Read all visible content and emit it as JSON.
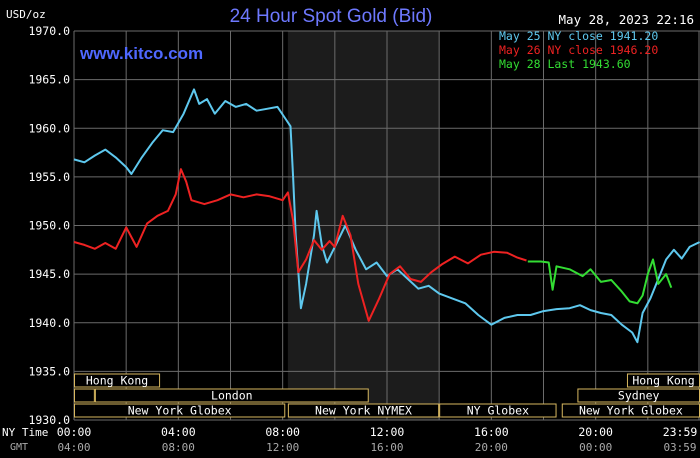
{
  "header": {
    "units": "USD/oz",
    "title": "24 Hour Spot Gold (Bid)",
    "timestamp": "May 28, 2023 22:16",
    "watermark": "www.kitco.com"
  },
  "legend": [
    {
      "label": "May 25 NY close 1941.20",
      "color": "#5ec8ee"
    },
    {
      "label": "May 26 NY close 1946.20",
      "color": "#ee2222"
    },
    {
      "label": "May 28 Last 1943.60",
      "color": "#33dd33"
    }
  ],
  "axis": {
    "ny_time_label": "NY Time",
    "gmt_label": "GMT",
    "x_ticks_ny": [
      "00:00",
      "04:00",
      "08:00",
      "12:00",
      "16:00",
      "20:00",
      "23:59"
    ],
    "x_ticks_gmt": [
      "04:00",
      "08:00",
      "12:00",
      "16:00",
      "20:00",
      "00:00",
      "03:59"
    ],
    "y_ticks": [
      "1970.0",
      "1965.0",
      "1960.0",
      "1955.0",
      "1950.0",
      "1945.0",
      "1940.0",
      "1935.0",
      "1930.0"
    ]
  },
  "sessions": {
    "row1": [
      {
        "label": "Hong Kong",
        "start": 0,
        "end": 3.3
      },
      {
        "label": "Hong Kong",
        "start": 21.2,
        "end": 24
      }
    ],
    "row2": [
      {
        "label": "",
        "start": 0,
        "end": 0.8
      },
      {
        "label": "London",
        "start": 0.8,
        "end": 11.3
      },
      {
        "label": "Sydney",
        "start": 19.3,
        "end": 24
      }
    ],
    "row3": [
      {
        "label": "New York Globex",
        "start": 0,
        "end": 8.1
      },
      {
        "label": "New York NYMEX",
        "start": 8.2,
        "end": 14.0
      },
      {
        "label": "NY Globex",
        "start": 14.0,
        "end": 18.5
      },
      {
        "label": "New York Globex",
        "start": 18.7,
        "end": 24
      }
    ]
  },
  "chart_data": {
    "type": "line",
    "title": "24 Hour Spot Gold (Bid)",
    "ylabel": "USD/oz",
    "xlabel": "NY Time",
    "ylim": [
      1930,
      1970
    ],
    "xlim": [
      0,
      24
    ],
    "grid": true,
    "shaded_region_hours": [
      8.2,
      14.0
    ],
    "legend_position": "top-right",
    "series": [
      {
        "name": "May 25 NY close 1941.20",
        "color": "#5ec8ee",
        "points": [
          [
            0,
            1956.8
          ],
          [
            0.4,
            1956.5
          ],
          [
            0.8,
            1957.2
          ],
          [
            1.2,
            1957.8
          ],
          [
            1.6,
            1957.0
          ],
          [
            2.0,
            1956.0
          ],
          [
            2.2,
            1955.3
          ],
          [
            2.6,
            1957.0
          ],
          [
            3.0,
            1958.5
          ],
          [
            3.4,
            1959.8
          ],
          [
            3.8,
            1959.6
          ],
          [
            4.2,
            1961.5
          ],
          [
            4.6,
            1964.0
          ],
          [
            4.8,
            1962.5
          ],
          [
            5.1,
            1963.0
          ],
          [
            5.4,
            1961.5
          ],
          [
            5.8,
            1962.8
          ],
          [
            6.2,
            1962.2
          ],
          [
            6.6,
            1962.5
          ],
          [
            7.0,
            1961.8
          ],
          [
            7.4,
            1962.0
          ],
          [
            7.8,
            1962.2
          ],
          [
            8.1,
            1961.0
          ],
          [
            8.3,
            1960.2
          ],
          [
            8.4,
            1955.0
          ],
          [
            8.5,
            1949.0
          ],
          [
            8.7,
            1941.5
          ],
          [
            8.9,
            1944.0
          ],
          [
            9.2,
            1949.0
          ],
          [
            9.3,
            1951.5
          ],
          [
            9.5,
            1948.0
          ],
          [
            9.7,
            1946.2
          ],
          [
            10.0,
            1947.8
          ],
          [
            10.4,
            1950.0
          ],
          [
            10.8,
            1947.5
          ],
          [
            11.2,
            1945.5
          ],
          [
            11.6,
            1946.2
          ],
          [
            12.0,
            1944.8
          ],
          [
            12.4,
            1945.5
          ],
          [
            12.8,
            1944.5
          ],
          [
            13.2,
            1943.5
          ],
          [
            13.6,
            1943.8
          ],
          [
            14.0,
            1943.0
          ],
          [
            14.5,
            1942.5
          ],
          [
            15.0,
            1942.0
          ],
          [
            15.5,
            1940.8
          ],
          [
            16.0,
            1939.8
          ],
          [
            16.5,
            1940.5
          ],
          [
            17.0,
            1940.8
          ],
          [
            17.5,
            1940.8
          ],
          [
            18.0,
            1941.2
          ],
          [
            18.5,
            1941.4
          ],
          [
            19.0,
            1941.5
          ],
          [
            19.4,
            1941.8
          ],
          [
            19.8,
            1941.3
          ],
          [
            20.2,
            1941.0
          ],
          [
            20.6,
            1940.8
          ],
          [
            21.0,
            1939.8
          ],
          [
            21.4,
            1939.0
          ],
          [
            21.6,
            1938.0
          ],
          [
            21.8,
            1941.0
          ],
          [
            22.1,
            1942.5
          ],
          [
            22.4,
            1944.5
          ],
          [
            22.7,
            1946.5
          ],
          [
            23.0,
            1947.5
          ],
          [
            23.3,
            1946.6
          ],
          [
            23.6,
            1947.8
          ],
          [
            23.99,
            1948.3
          ]
        ]
      },
      {
        "name": "May 26 NY close 1946.20",
        "color": "#ee2222",
        "points": [
          [
            0,
            1948.3
          ],
          [
            0.4,
            1948.0
          ],
          [
            0.8,
            1947.6
          ],
          [
            1.2,
            1948.2
          ],
          [
            1.6,
            1947.6
          ],
          [
            2.0,
            1949.8
          ],
          [
            2.4,
            1947.8
          ],
          [
            2.8,
            1950.2
          ],
          [
            3.2,
            1951.0
          ],
          [
            3.6,
            1951.5
          ],
          [
            3.9,
            1953.2
          ],
          [
            4.1,
            1955.8
          ],
          [
            4.3,
            1954.5
          ],
          [
            4.5,
            1952.6
          ],
          [
            5.0,
            1952.2
          ],
          [
            5.5,
            1952.6
          ],
          [
            6.0,
            1953.2
          ],
          [
            6.5,
            1952.9
          ],
          [
            7.0,
            1953.2
          ],
          [
            7.5,
            1953.0
          ],
          [
            8.0,
            1952.6
          ],
          [
            8.2,
            1953.4
          ],
          [
            8.4,
            1950.5
          ],
          [
            8.6,
            1945.2
          ],
          [
            8.9,
            1946.5
          ],
          [
            9.2,
            1948.5
          ],
          [
            9.5,
            1947.5
          ],
          [
            9.8,
            1948.4
          ],
          [
            10.0,
            1947.8
          ],
          [
            10.3,
            1951.0
          ],
          [
            10.6,
            1949.0
          ],
          [
            10.9,
            1944.0
          ],
          [
            11.3,
            1940.2
          ],
          [
            11.7,
            1942.5
          ],
          [
            12.1,
            1945.0
          ],
          [
            12.5,
            1945.8
          ],
          [
            12.9,
            1944.5
          ],
          [
            13.3,
            1944.2
          ],
          [
            13.7,
            1945.2
          ],
          [
            14.1,
            1946.0
          ],
          [
            14.6,
            1946.8
          ],
          [
            15.1,
            1946.1
          ],
          [
            15.6,
            1947.0
          ],
          [
            16.1,
            1947.3
          ],
          [
            16.6,
            1947.2
          ],
          [
            17.0,
            1946.7
          ],
          [
            17.35,
            1946.4
          ]
        ]
      },
      {
        "name": "May 28 Last 1943.60",
        "color": "#33dd33",
        "points": [
          [
            17.4,
            1946.3
          ],
          [
            17.9,
            1946.3
          ],
          [
            18.2,
            1946.2
          ],
          [
            18.35,
            1943.4
          ],
          [
            18.5,
            1945.8
          ],
          [
            19.0,
            1945.5
          ],
          [
            19.5,
            1944.8
          ],
          [
            19.8,
            1945.5
          ],
          [
            20.2,
            1944.2
          ],
          [
            20.6,
            1944.4
          ],
          [
            21.0,
            1943.2
          ],
          [
            21.3,
            1942.2
          ],
          [
            21.6,
            1942.0
          ],
          [
            21.8,
            1942.8
          ],
          [
            22.0,
            1945.0
          ],
          [
            22.2,
            1946.5
          ],
          [
            22.4,
            1944.0
          ],
          [
            22.7,
            1945.0
          ],
          [
            22.9,
            1943.6
          ]
        ]
      }
    ]
  }
}
